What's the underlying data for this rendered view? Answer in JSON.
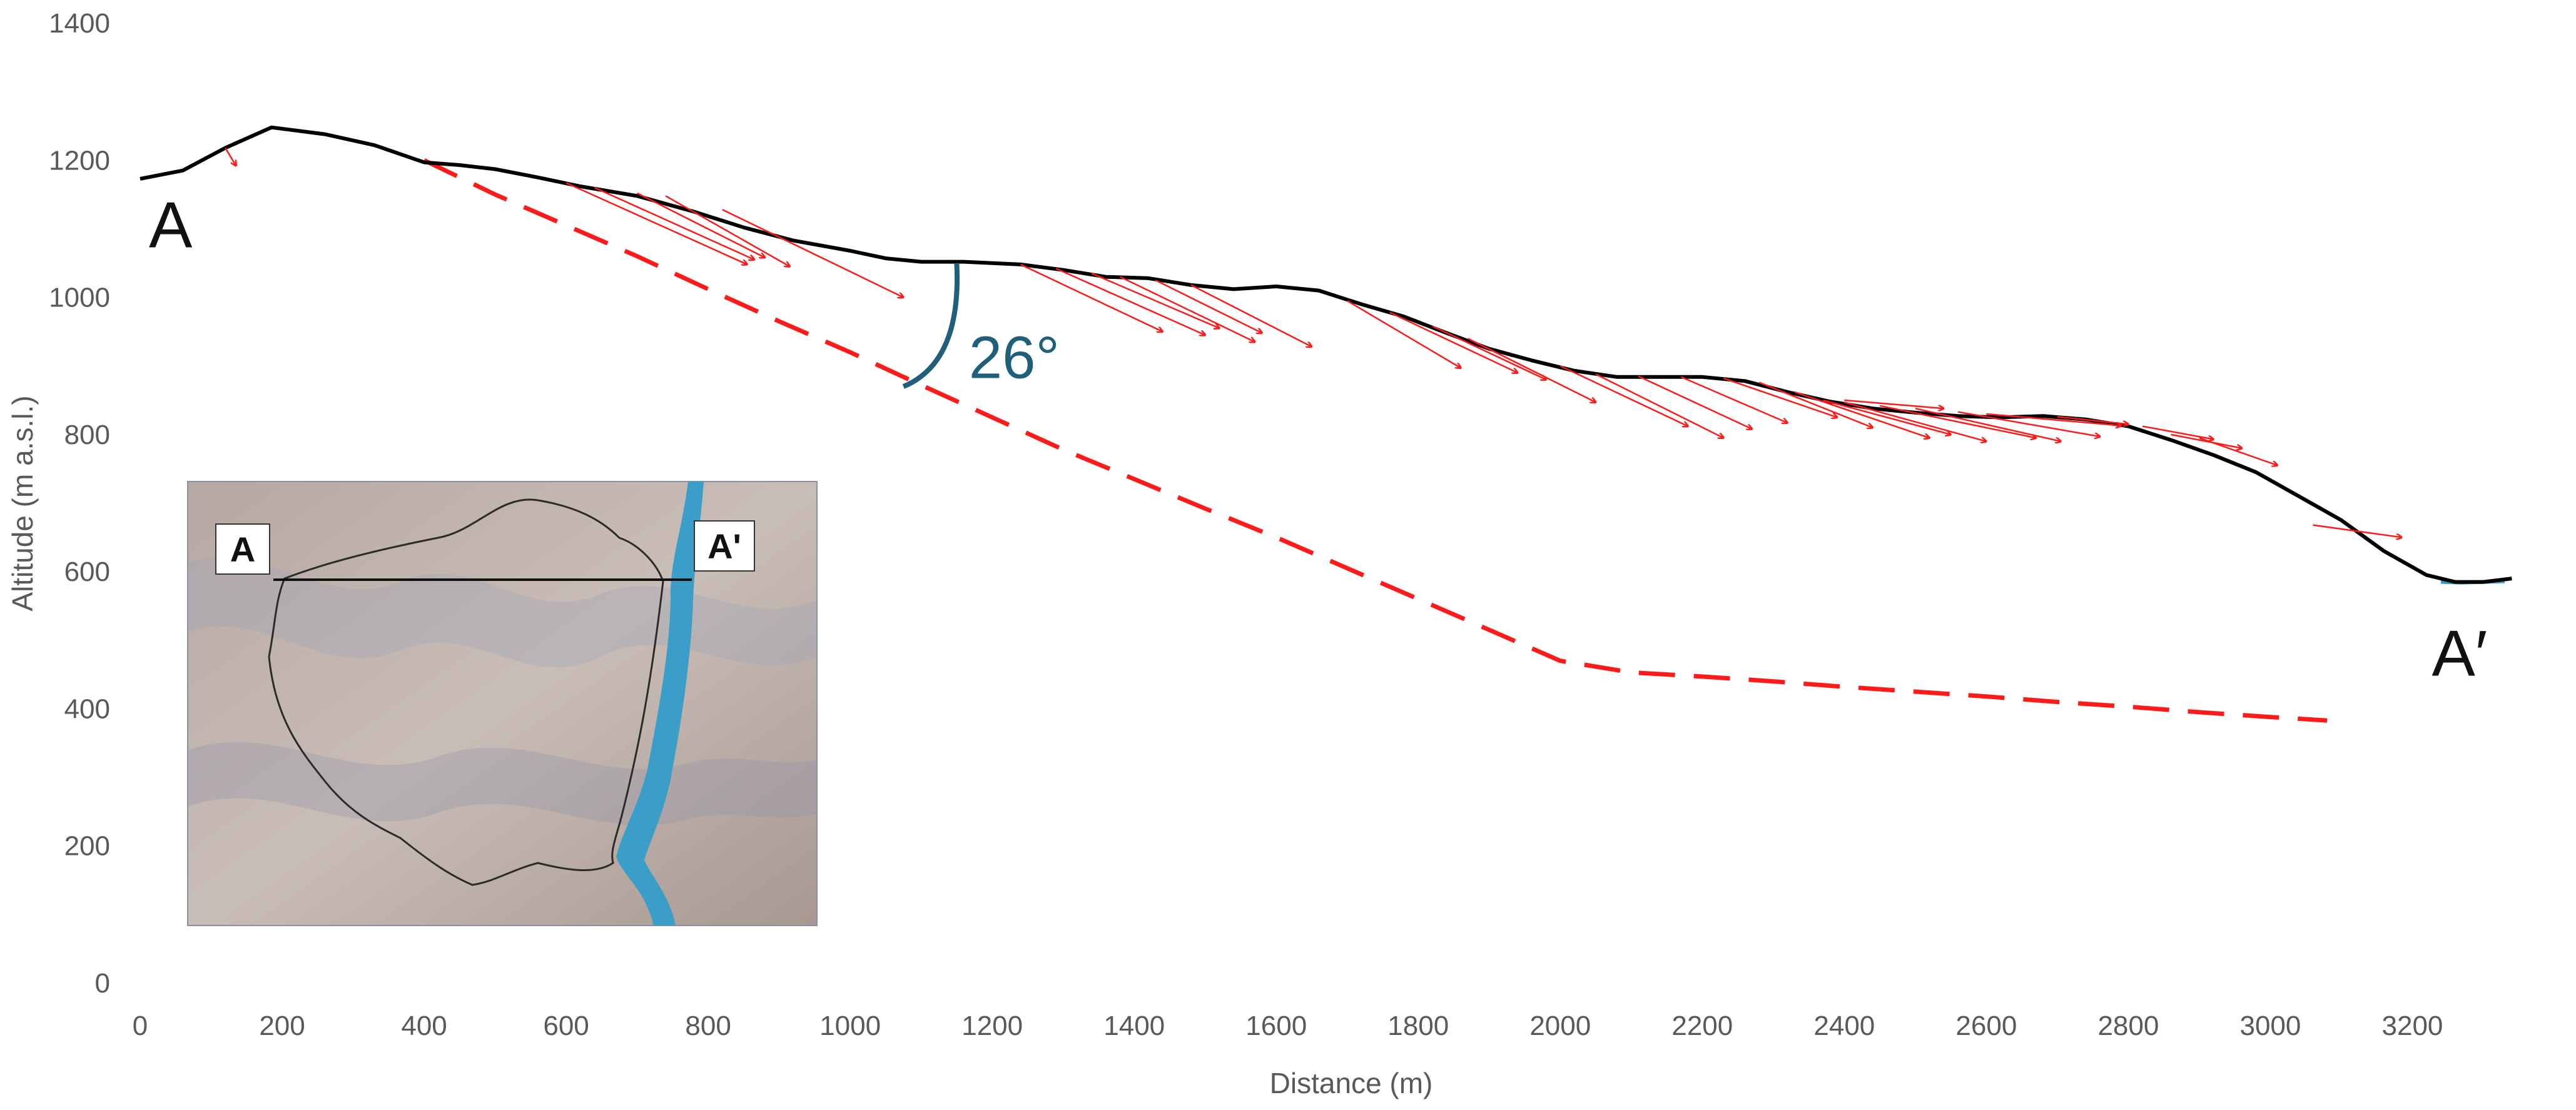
{
  "chart_data": {
    "type": "line",
    "xlabel": "Distance (m)",
    "ylabel": "Altitude (m a.s.l.)",
    "xlim": [
      0,
      3350
    ],
    "ylim": [
      0,
      1400
    ],
    "xticks": [
      0,
      200,
      400,
      600,
      800,
      1000,
      1200,
      1400,
      1600,
      1800,
      2000,
      2200,
      2400,
      2600,
      2800,
      3000,
      3200
    ],
    "yticks": [
      0,
      200,
      400,
      600,
      800,
      1000,
      1200,
      1400
    ],
    "grid": false,
    "legend": "none",
    "colors": {
      "profile": "#000000",
      "failure_surface": "#ff1a1a",
      "vectors": "#ff1a1a",
      "angle": "#1f5f7a",
      "river": "#3a9ec9",
      "axis_text": "#595959"
    },
    "series": [
      {
        "role": "topographic profile",
        "x": [
          0,
          60,
          120,
          185,
          260,
          330,
          400,
          450,
          500,
          560,
          620,
          700,
          780,
          850,
          920,
          1000,
          1050,
          1100,
          1160,
          1240,
          1300,
          1360,
          1420,
          1480,
          1540,
          1600,
          1660,
          1720,
          1780,
          1840,
          1900,
          1960,
          2020,
          2080,
          2140,
          2200,
          2260,
          2320,
          2380,
          2440,
          2500,
          2560,
          2620,
          2680,
          2740,
          2800,
          2860,
          2920,
          2980,
          3040,
          3100,
          3160,
          3220,
          3260,
          3300,
          3340
        ],
        "y": [
          1173,
          1185,
          1218,
          1248,
          1238,
          1222,
          1197,
          1193,
          1187,
          1175,
          1162,
          1148,
          1125,
          1102,
          1083,
          1068,
          1057,
          1052,
          1052,
          1048,
          1040,
          1030,
          1028,
          1018,
          1012,
          1016,
          1010,
          990,
          972,
          948,
          925,
          908,
          893,
          884,
          884,
          884,
          878,
          862,
          848,
          838,
          832,
          827,
          825,
          827,
          822,
          812,
          792,
          770,
          745,
          710,
          675,
          630,
          595,
          585,
          585,
          590
        ]
      },
      {
        "role": "basal failure surface (dashed)",
        "x": [
          400,
          500,
          600,
          700,
          800,
          900,
          1000,
          1100,
          1200,
          1300,
          1400,
          1500,
          1600,
          1700,
          1800,
          1900,
          2000,
          2100,
          2200,
          2300,
          2400,
          2500,
          2600,
          2700,
          2800,
          2900,
          3000,
          3080
        ],
        "y": [
          1200,
          1150,
          1105,
          1060,
          1012,
          965,
          920,
          872,
          825,
          778,
          735,
          692,
          650,
          605,
          560,
          515,
          470,
          453,
          447,
          440,
          432,
          425,
          418,
          410,
          403,
          395,
          388,
          383
        ]
      },
      {
        "role": "river segment",
        "x": [
          3240,
          3270,
          3300,
          3330
        ],
        "y": [
          585,
          584,
          585,
          586
        ]
      }
    ],
    "vectors": [
      {
        "x0": 120,
        "y0": 1218,
        "x1": 135,
        "y1": 1192
      },
      {
        "x0": 600,
        "y0": 1167,
        "x1": 855,
        "y1": 1048
      },
      {
        "x0": 640,
        "y0": 1160,
        "x1": 865,
        "y1": 1055
      },
      {
        "x0": 700,
        "y0": 1152,
        "x1": 880,
        "y1": 1058
      },
      {
        "x0": 740,
        "y0": 1148,
        "x1": 915,
        "y1": 1045
      },
      {
        "x0": 820,
        "y0": 1128,
        "x1": 1075,
        "y1": 1000
      },
      {
        "x0": 1240,
        "y0": 1048,
        "x1": 1440,
        "y1": 950
      },
      {
        "x0": 1290,
        "y0": 1042,
        "x1": 1500,
        "y1": 945
      },
      {
        "x0": 1340,
        "y0": 1035,
        "x1": 1520,
        "y1": 955
      },
      {
        "x0": 1380,
        "y0": 1030,
        "x1": 1570,
        "y1": 935
      },
      {
        "x0": 1430,
        "y0": 1025,
        "x1": 1580,
        "y1": 948
      },
      {
        "x0": 1480,
        "y0": 1018,
        "x1": 1650,
        "y1": 928
      },
      {
        "x0": 1700,
        "y0": 995,
        "x1": 1860,
        "y1": 897
      },
      {
        "x0": 1760,
        "y0": 978,
        "x1": 1940,
        "y1": 890
      },
      {
        "x0": 1820,
        "y0": 958,
        "x1": 1980,
        "y1": 880
      },
      {
        "x0": 1870,
        "y0": 940,
        "x1": 2050,
        "y1": 847
      },
      {
        "x0": 2000,
        "y0": 900,
        "x1": 2180,
        "y1": 812
      },
      {
        "x0": 2050,
        "y0": 888,
        "x1": 2230,
        "y1": 795
      },
      {
        "x0": 2110,
        "y0": 885,
        "x1": 2270,
        "y1": 808
      },
      {
        "x0": 2170,
        "y0": 884,
        "x1": 2320,
        "y1": 817
      },
      {
        "x0": 2230,
        "y0": 882,
        "x1": 2390,
        "y1": 825
      },
      {
        "x0": 2280,
        "y0": 876,
        "x1": 2440,
        "y1": 810
      },
      {
        "x0": 2330,
        "y0": 862,
        "x1": 2520,
        "y1": 795
      },
      {
        "x0": 2370,
        "y0": 850,
        "x1": 2550,
        "y1": 800
      },
      {
        "x0": 2400,
        "y0": 847,
        "x1": 2600,
        "y1": 790
      },
      {
        "x0": 2450,
        "y0": 842,
        "x1": 2670,
        "y1": 795
      },
      {
        "x0": 2500,
        "y0": 838,
        "x1": 2705,
        "y1": 790
      },
      {
        "x0": 2560,
        "y0": 833,
        "x1": 2760,
        "y1": 797
      },
      {
        "x0": 2400,
        "y0": 850,
        "x1": 2540,
        "y1": 838
      },
      {
        "x0": 2600,
        "y0": 830,
        "x1": 2790,
        "y1": 813
      },
      {
        "x0": 2700,
        "y0": 826,
        "x1": 2800,
        "y1": 815
      },
      {
        "x0": 2820,
        "y0": 812,
        "x1": 2920,
        "y1": 793
      },
      {
        "x0": 2860,
        "y0": 800,
        "x1": 2960,
        "y1": 780
      },
      {
        "x0": 2900,
        "y0": 795,
        "x1": 3010,
        "y1": 755
      },
      {
        "x0": 3060,
        "y0": 668,
        "x1": 3185,
        "y1": 650
      }
    ],
    "annotations": [
      {
        "text": "A",
        "x": 30,
        "y": 1105,
        "kind": "profile-start"
      },
      {
        "text": "A′",
        "x": 3245,
        "y": 480,
        "kind": "profile-end"
      },
      {
        "text": "26°",
        "x": 1160,
        "y": 910,
        "kind": "slope-angle",
        "arc_center": [
          1150,
          1050
        ],
        "arc_from": [
          1150,
          1050
        ],
        "arc_to": [
          1075,
          870
        ]
      }
    ]
  },
  "inset": {
    "description_labels": [
      "A",
      "A'"
    ],
    "label_a": "A",
    "label_a_prime": "A'"
  }
}
